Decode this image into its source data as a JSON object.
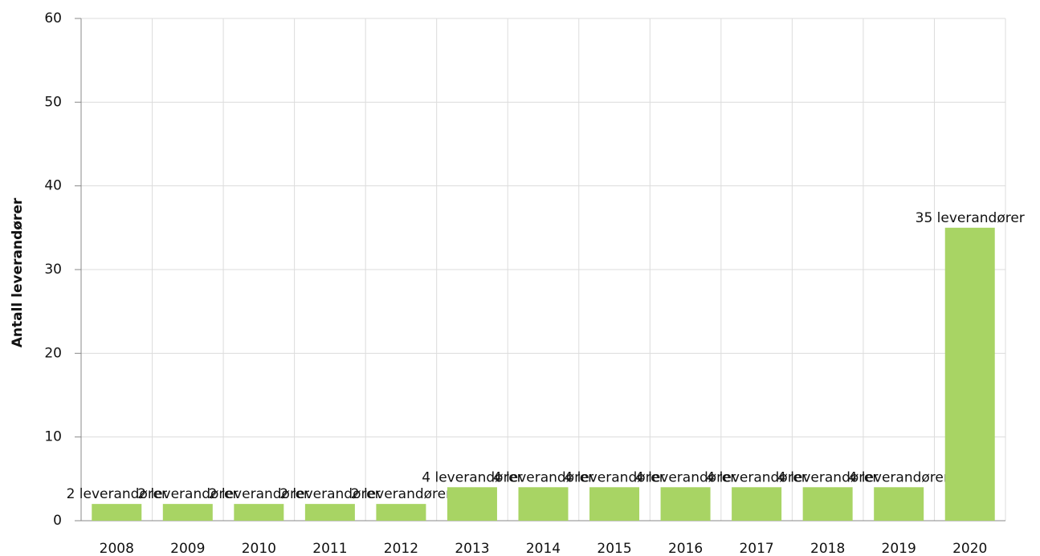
{
  "chart_data": {
    "type": "bar",
    "y_label": "Antall leverandører",
    "categories": [
      "2008",
      "2009",
      "2010",
      "2011",
      "2012",
      "2013",
      "2014",
      "2015",
      "2016",
      "2017",
      "2018",
      "2019",
      "2020"
    ],
    "values": [
      2,
      2,
      2,
      2,
      2,
      4,
      4,
      4,
      4,
      4,
      4,
      4,
      35
    ],
    "value_labels": [
      "2 leverandører",
      "2 leverandører",
      "2 leverandører",
      "2 leverandører",
      "2 leverandører",
      "4 leverandører",
      "4 leverandører",
      "4 leverandører",
      "4 leverandører",
      "4 leverandører",
      "4 leverandører",
      "4 leverandører",
      "35 leverandører"
    ],
    "color": "#a8d464",
    "ylim": [
      0,
      60
    ],
    "yticks": [
      0,
      10,
      20,
      30,
      40,
      50,
      60
    ],
    "grid": true
  }
}
